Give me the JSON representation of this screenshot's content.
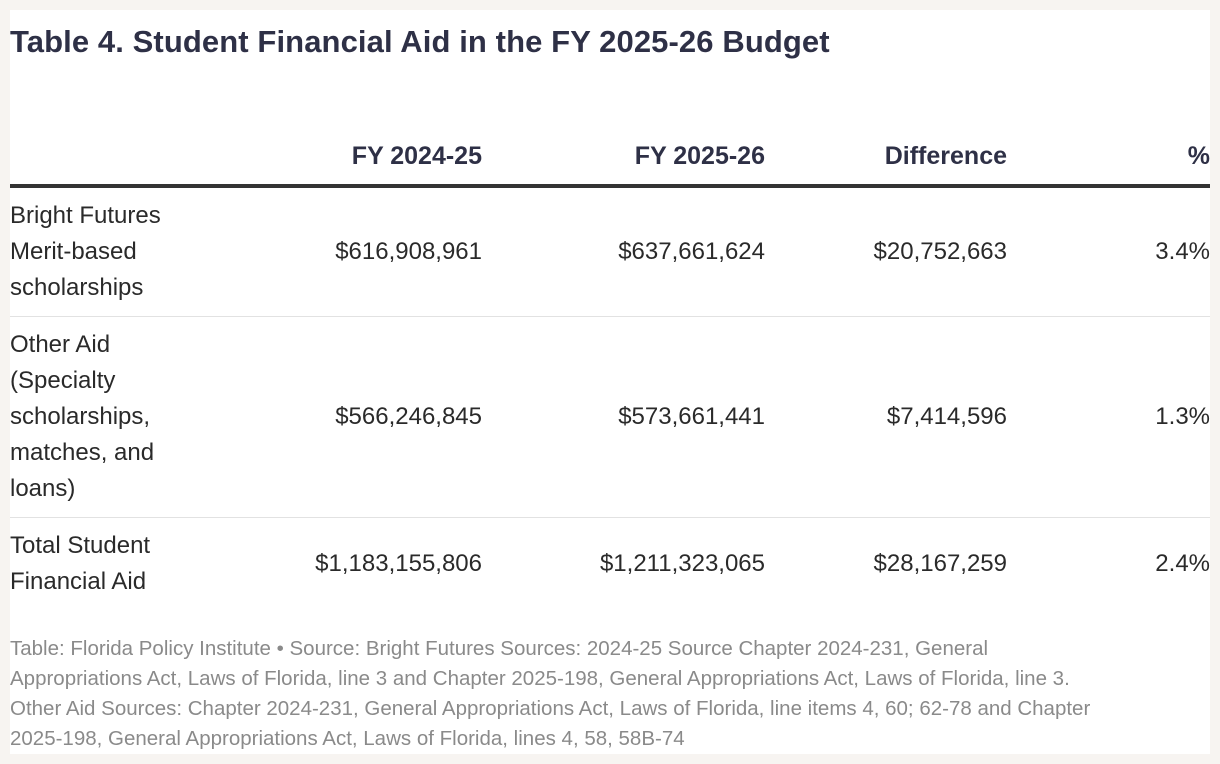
{
  "chart_data": {
    "type": "table",
    "title": "Table 4. Student Financial Aid in the FY 2025-26 Budget",
    "columns": [
      "",
      "FY 2024-25",
      "FY 2025-26",
      "Difference",
      "%"
    ],
    "rows": [
      {
        "label_lines": [
          "Bright Futures",
          "Merit-based",
          "scholarships"
        ],
        "fy2024_25": "$616,908,961",
        "fy2025_26": "$637,661,624",
        "difference": "$20,752,663",
        "percent": "3.4%"
      },
      {
        "label_lines": [
          "Other Aid",
          "(Specialty",
          "scholarships,",
          "matches, and",
          "loans)"
        ],
        "fy2024_25": "$566,246,845",
        "fy2025_26": "$573,661,441",
        "difference": "$7,414,596",
        "percent": "1.3%"
      },
      {
        "label_lines": [
          "Total Student",
          "Financial Aid"
        ],
        "fy2024_25": "$1,183,155,806",
        "fy2025_26": "$1,211,323,065",
        "difference": "$28,167,259",
        "percent": "2.4%"
      }
    ],
    "footer_lines": [
      "Table: Florida Policy Institute • Source: Bright Futures Sources: 2024-25 Source Chapter 2024-231, General",
      "Appropriations Act, Laws of Florida, line 3 and Chapter 2025-198, General Appropriations Act, Laws of Florida, line 3.",
      "Other Aid Sources: Chapter 2024-231, General Appropriations Act, Laws of Florida, line items 4, 60; 62-78 and Chapter",
      "2025-198, General Appropriations Act, Laws of Florida, lines 4, 58, 58B-74"
    ]
  }
}
